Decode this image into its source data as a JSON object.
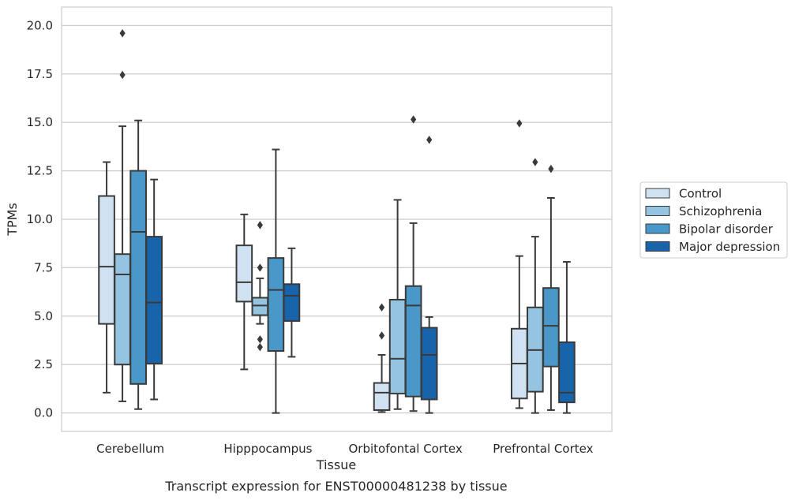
{
  "chart_data": {
    "type": "box",
    "title": "",
    "caption": "Transcript expression for ENST00000481238 by tissue",
    "xlabel": "Tissue",
    "ylabel": "TPMs",
    "ylim": [
      -0.95,
      20.95
    ],
    "yticks": [
      0.0,
      2.5,
      5.0,
      7.5,
      10.0,
      12.5,
      15.0,
      17.5,
      20.0
    ],
    "ytick_labels": [
      "0.0",
      "2.5",
      "5.0",
      "7.5",
      "10.0",
      "12.5",
      "15.0",
      "17.5",
      "20.0"
    ],
    "grid": true,
    "legend_position": "right",
    "categories": [
      "Cerebellum",
      "Hipppocampus",
      "Orbitofontal Cortex",
      "Prefrontal Cortex"
    ],
    "series": [
      {
        "name": "Control",
        "color": "#d0e1f2",
        "boxes": [
          {
            "whisker_low": 1.05,
            "q1": 4.6,
            "median": 7.55,
            "q3": 11.2,
            "whisker_high": 12.95,
            "outliers": []
          },
          {
            "whisker_low": 2.25,
            "q1": 5.75,
            "median": 6.75,
            "q3": 8.65,
            "whisker_high": 10.25,
            "outliers": []
          },
          {
            "whisker_low": 0.05,
            "q1": 0.15,
            "median": 1.05,
            "q3": 1.55,
            "whisker_high": 3.0,
            "outliers": [
              4.0,
              5.45
            ]
          },
          {
            "whisker_low": 0.25,
            "q1": 0.75,
            "median": 2.55,
            "q3": 4.35,
            "whisker_high": 8.1,
            "outliers": [
              14.95
            ]
          }
        ]
      },
      {
        "name": "Schizophrenia",
        "color": "#94c4df",
        "boxes": [
          {
            "whisker_low": 0.6,
            "q1": 2.5,
            "median": 7.15,
            "q3": 8.2,
            "whisker_high": 14.8,
            "outliers": [
              17.45,
              19.6
            ]
          },
          {
            "whisker_low": 4.6,
            "q1": 5.05,
            "median": 5.55,
            "q3": 5.95,
            "whisker_high": 6.95,
            "outliers": [
              3.4,
              3.8,
              7.5,
              9.7
            ]
          },
          {
            "whisker_low": 0.2,
            "q1": 1.0,
            "median": 2.8,
            "q3": 5.85,
            "whisker_high": 11.0,
            "outliers": []
          },
          {
            "whisker_low": 0.0,
            "q1": 1.1,
            "median": 3.25,
            "q3": 5.45,
            "whisker_high": 9.1,
            "outliers": [
              12.95
            ]
          }
        ]
      },
      {
        "name": "Bipolar disorder",
        "color": "#4a98c9",
        "boxes": [
          {
            "whisker_low": 0.2,
            "q1": 1.5,
            "median": 9.35,
            "q3": 12.5,
            "whisker_high": 15.1,
            "outliers": []
          },
          {
            "whisker_low": 0.0,
            "q1": 3.2,
            "median": 6.35,
            "q3": 8.0,
            "whisker_high": 13.6,
            "outliers": []
          },
          {
            "whisker_low": 0.1,
            "q1": 0.85,
            "median": 5.55,
            "q3": 6.55,
            "whisker_high": 9.8,
            "outliers": [
              15.15
            ]
          },
          {
            "whisker_low": 0.15,
            "q1": 2.4,
            "median": 4.5,
            "q3": 6.45,
            "whisker_high": 11.1,
            "outliers": [
              12.6
            ]
          }
        ]
      },
      {
        "name": "Major depression",
        "color": "#1764ab",
        "boxes": [
          {
            "whisker_low": 0.7,
            "q1": 2.55,
            "median": 5.7,
            "q3": 9.1,
            "whisker_high": 12.05,
            "outliers": []
          },
          {
            "whisker_low": 2.9,
            "q1": 4.75,
            "median": 6.05,
            "q3": 6.65,
            "whisker_high": 8.5,
            "outliers": []
          },
          {
            "whisker_low": 0.0,
            "q1": 0.7,
            "median": 3.0,
            "q3": 4.4,
            "whisker_high": 4.95,
            "outliers": [
              14.1
            ]
          },
          {
            "whisker_low": 0.0,
            "q1": 0.55,
            "median": 1.05,
            "q3": 3.65,
            "whisker_high": 7.8,
            "outliers": []
          }
        ]
      }
    ]
  }
}
